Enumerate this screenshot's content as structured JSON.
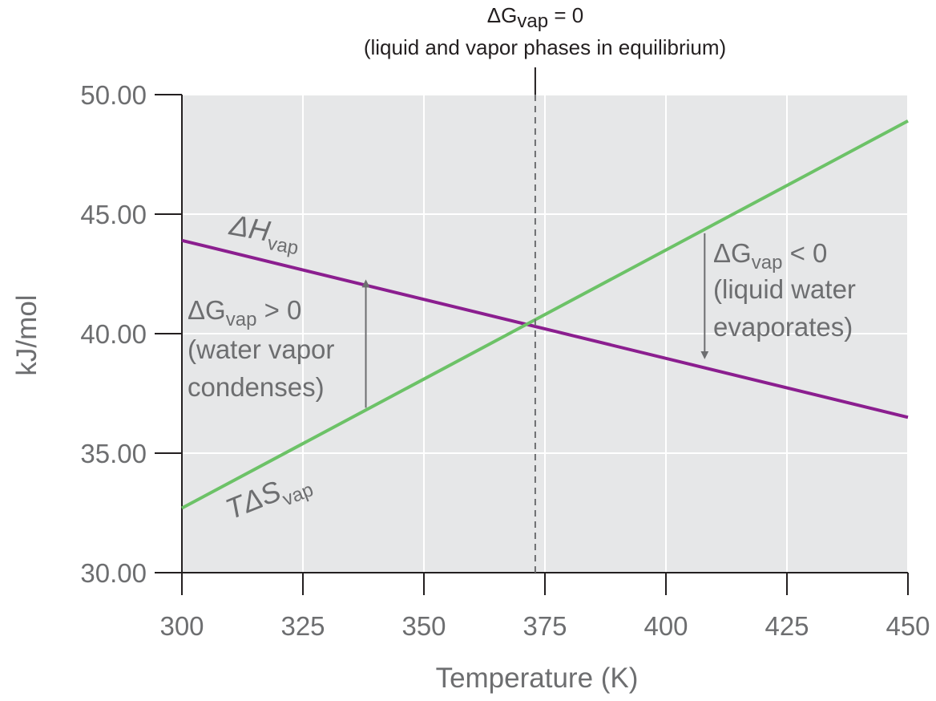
{
  "chart_data": {
    "type": "line",
    "xlabel": "Temperature (K)",
    "ylabel": "kJ/mol",
    "xlim": [
      300,
      450
    ],
    "ylim": [
      30,
      50
    ],
    "x_ticks": [
      "300",
      "325",
      "350",
      "375",
      "400",
      "425",
      "450"
    ],
    "y_ticks": [
      "30.00",
      "35.00",
      "40.00",
      "45.00",
      "50.00"
    ],
    "grid": true,
    "background_color": "#e6e7e8",
    "series": [
      {
        "name_symbol": "ΔH",
        "name_sub": "vap",
        "x": [
          300,
          450
        ],
        "y": [
          43.9,
          36.5
        ],
        "color": "#8b1e8f"
      },
      {
        "name_symbol": "TΔS",
        "name_sub": "vap",
        "x": [
          300,
          450
        ],
        "y": [
          32.7,
          48.9
        ],
        "color": "#6cc267"
      }
    ],
    "equilibrium": {
      "x": 373,
      "label_line1_symbol": "ΔG",
      "label_line1_sub": "vap",
      "label_line1_rest": " = 0",
      "label_line2": "(liquid and vapor phases in equilibrium)"
    },
    "annotations": {
      "left": {
        "symbol": "ΔG",
        "sub": "vap",
        "rest": " > 0",
        "line2": "(water vapor",
        "line3": "condenses)",
        "arrow_x": 338,
        "arrow_y_from": 36.9,
        "arrow_y_to": 42.1
      },
      "right": {
        "symbol": "ΔG",
        "sub": "vap",
        "rest": " < 0",
        "line2": "(liquid water",
        "line3": "evaporates)",
        "arrow_x": 408,
        "arrow_y_from": 44.2,
        "arrow_y_to": 39.1
      }
    }
  }
}
